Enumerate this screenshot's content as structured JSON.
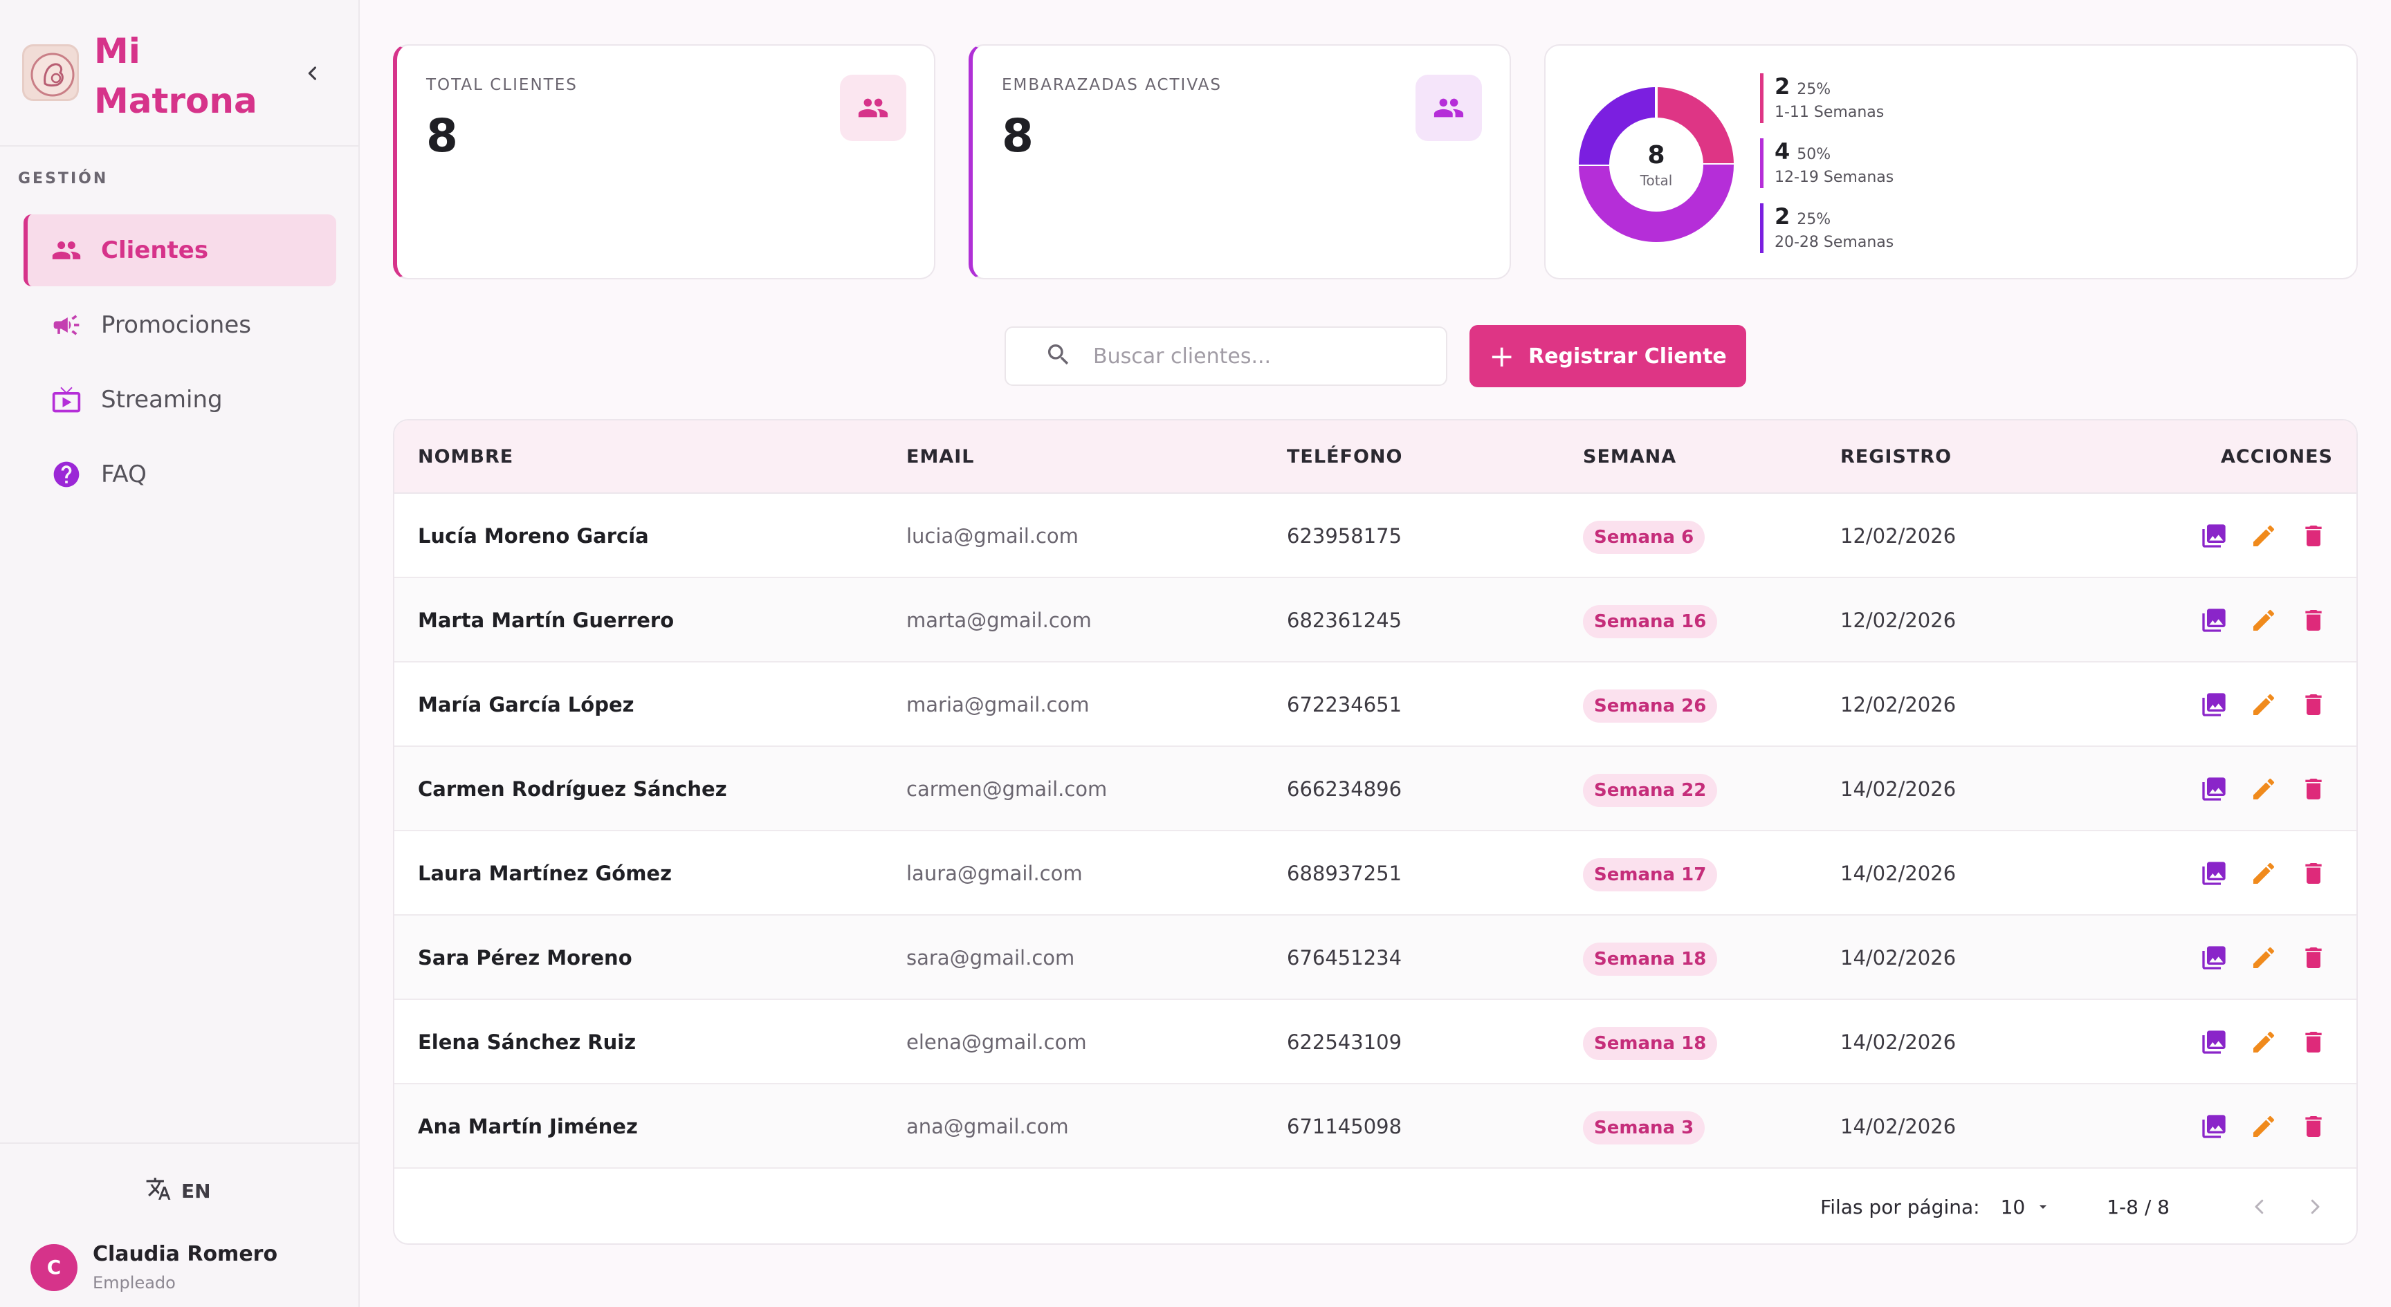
{
  "app": {
    "name": "Mi Matrona",
    "brand_color": "#d6338a"
  },
  "sidebar": {
    "section_label": "GESTIÓN",
    "items": [
      {
        "label": "Clientes",
        "icon": "people-icon",
        "active": true
      },
      {
        "label": "Promociones",
        "icon": "megaphone-icon",
        "active": false
      },
      {
        "label": "Streaming",
        "icon": "live-tv-icon",
        "active": false
      },
      {
        "label": "FAQ",
        "icon": "help-circle-icon",
        "active": false
      }
    ],
    "language": "EN",
    "user": {
      "initial": "C",
      "name": "Claudia Romero",
      "role": "Empleado"
    }
  },
  "stats": {
    "total_clients": {
      "label": "TOTAL CLIENTES",
      "value": "8"
    },
    "active_pregnant": {
      "label": "EMBARAZADAS ACTIVAS",
      "value": "8"
    }
  },
  "chart_data": {
    "type": "pie",
    "center_value": "8",
    "center_label": "Total",
    "categories": [
      "1-11 Semanas",
      "12-19 Semanas",
      "20-28 Semanas"
    ],
    "values": [
      2,
      4,
      2
    ],
    "percent_labels": [
      "25%",
      "50%",
      "25%"
    ],
    "colors": [
      "#de3585",
      "#b52ed8",
      "#7b1fe0"
    ]
  },
  "toolbar": {
    "search_placeholder": "Buscar clientes...",
    "register_label": "Registrar Cliente"
  },
  "table": {
    "headers": {
      "name": "NOMBRE",
      "email": "EMAIL",
      "phone": "TELÉFONO",
      "week": "SEMANA",
      "registered": "REGISTRO",
      "actions": "ACCIONES"
    },
    "rows": [
      {
        "name": "Lucía Moreno García",
        "email": "lucia@gmail.com",
        "phone": "623958175",
        "week": "Semana 6",
        "registered": "12/02/2026"
      },
      {
        "name": "Marta Martín Guerrero",
        "email": "marta@gmail.com",
        "phone": "682361245",
        "week": "Semana 16",
        "registered": "12/02/2026"
      },
      {
        "name": "María García López",
        "email": "maria@gmail.com",
        "phone": "672234651",
        "week": "Semana 26",
        "registered": "12/02/2026"
      },
      {
        "name": "Carmen Rodríguez Sánchez",
        "email": "carmen@gmail.com",
        "phone": "666234896",
        "week": "Semana 22",
        "registered": "14/02/2026"
      },
      {
        "name": "Laura Martínez Gómez",
        "email": "laura@gmail.com",
        "phone": "688937251",
        "week": "Semana 17",
        "registered": "14/02/2026"
      },
      {
        "name": "Sara Pérez Moreno",
        "email": "sara@gmail.com",
        "phone": "676451234",
        "week": "Semana 18",
        "registered": "14/02/2026"
      },
      {
        "name": "Elena Sánchez Ruiz",
        "email": "elena@gmail.com",
        "phone": "622543109",
        "week": "Semana 18",
        "registered": "14/02/2026"
      },
      {
        "name": "Ana Martín Jiménez",
        "email": "ana@gmail.com",
        "phone": "671145098",
        "week": "Semana 3",
        "registered": "14/02/2026"
      }
    ],
    "row_action_icons": [
      "photo-library-icon",
      "edit-pencil-icon",
      "delete-trash-icon"
    ],
    "footer": {
      "rows_per_page_label": "Filas por página:",
      "rows_per_page_value": "10",
      "range": "1-8 / 8"
    }
  }
}
